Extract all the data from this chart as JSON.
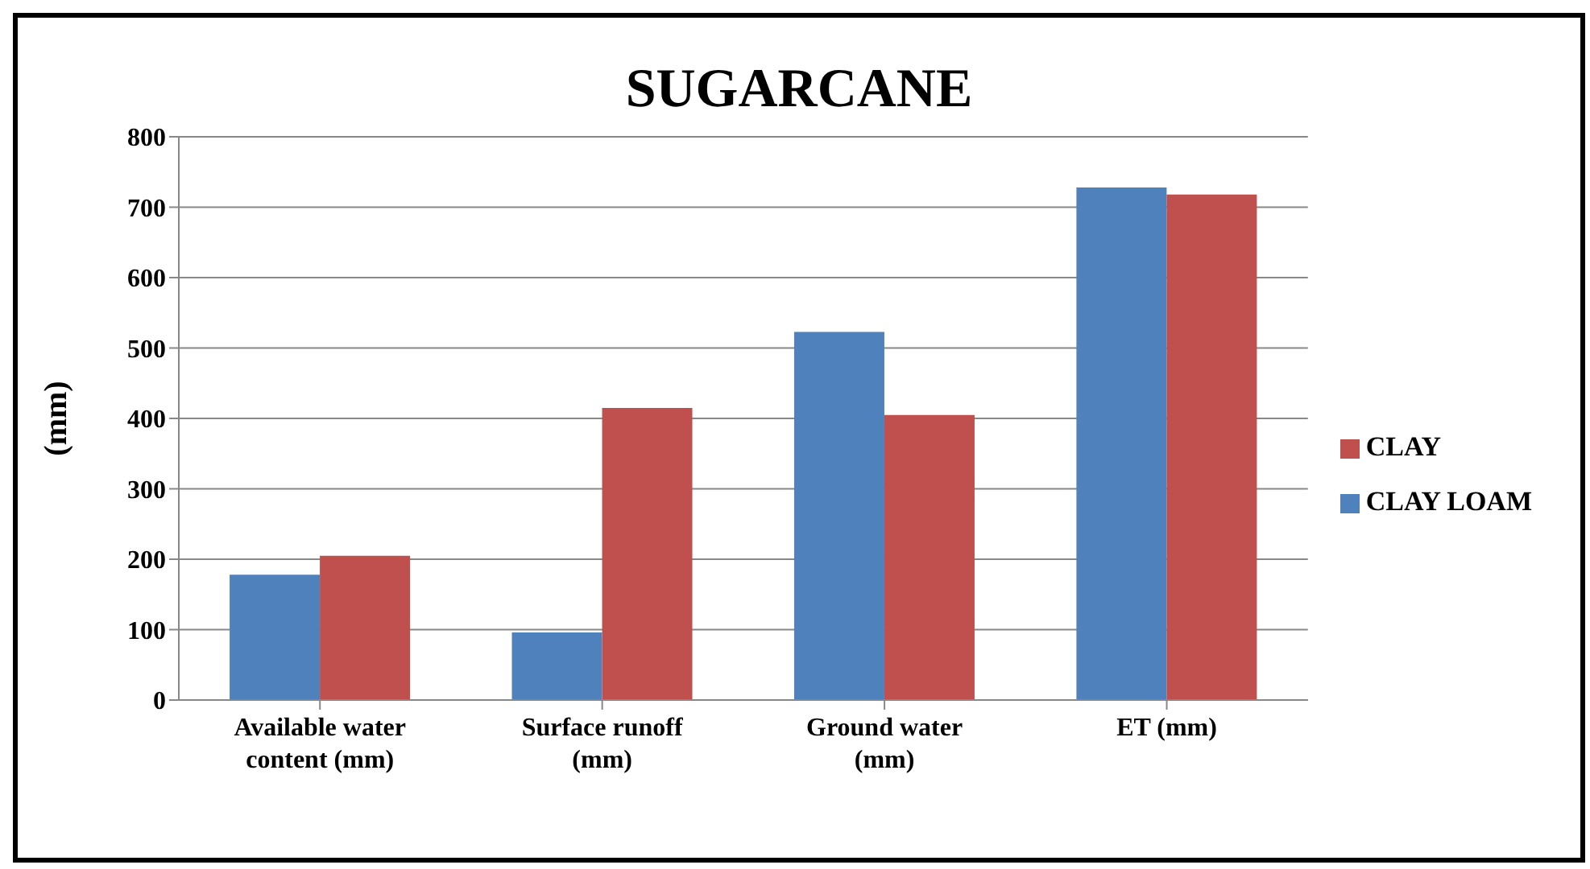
{
  "chart_data": {
    "type": "bar",
    "title": "SUGARCANE",
    "ylabel": "(mm)",
    "categories": [
      "Available water content (mm)",
      "Surface runoff (mm)",
      "Ground water (mm)",
      "ET (mm)"
    ],
    "series": [
      {
        "name": "CLAY LOAM",
        "color": "#4f81bd",
        "values": [
          178,
          96,
          523,
          728
        ]
      },
      {
        "name": "CLAY",
        "color": "#c0504d",
        "values": [
          205,
          415,
          405,
          718
        ]
      }
    ],
    "ylim": [
      0,
      800
    ],
    "yticks": [
      0,
      100,
      200,
      300,
      400,
      500,
      600,
      700,
      800
    ],
    "grid": "y",
    "legend": "right"
  }
}
